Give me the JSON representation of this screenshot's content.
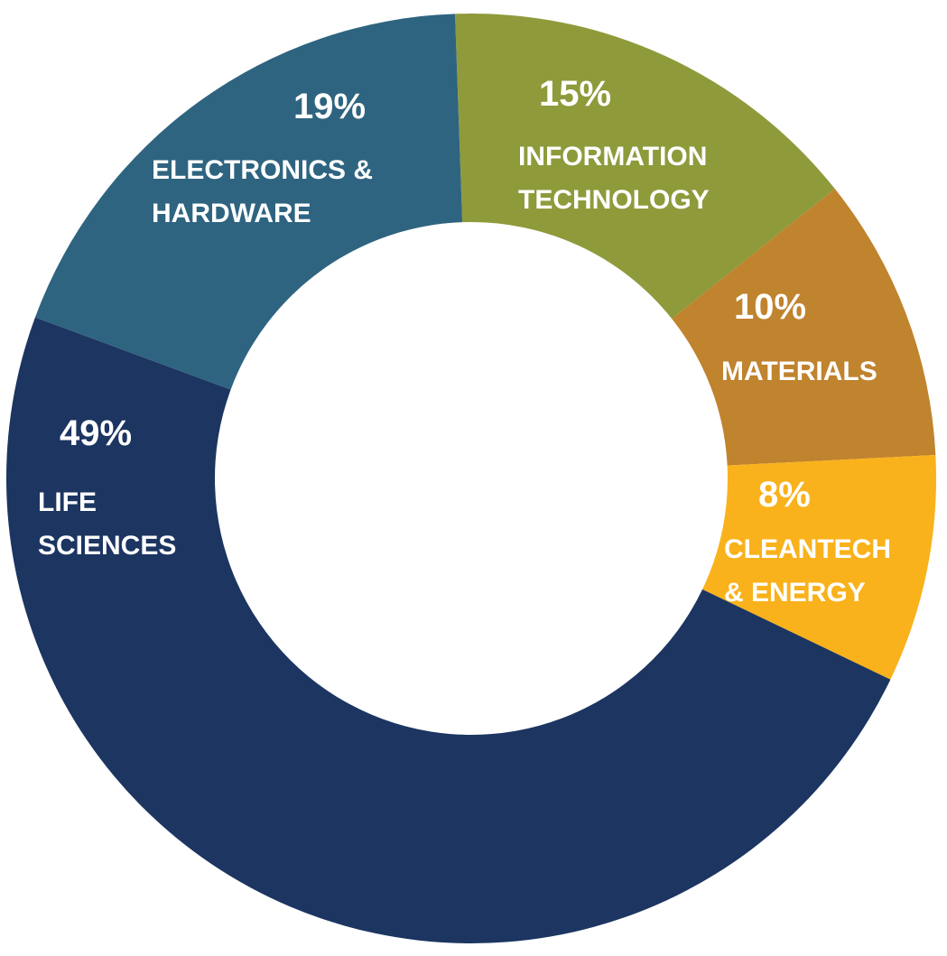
{
  "chart_data": {
    "type": "donut",
    "categories": [
      "INFORMATION TECHNOLOGY",
      "MATERIALS",
      "CLEANTECH & ENERGY",
      "LIFE SCIENCES",
      "ELECTRONICS & HARDWARE"
    ],
    "values": [
      15,
      10,
      8,
      49,
      19
    ],
    "value_labels": [
      "15%",
      "10%",
      "8%",
      "49%",
      "19%"
    ],
    "colors": [
      "#8f9a3b",
      "#c0832e",
      "#f9b21b",
      "#1c3561",
      "#2e6480"
    ]
  }
}
